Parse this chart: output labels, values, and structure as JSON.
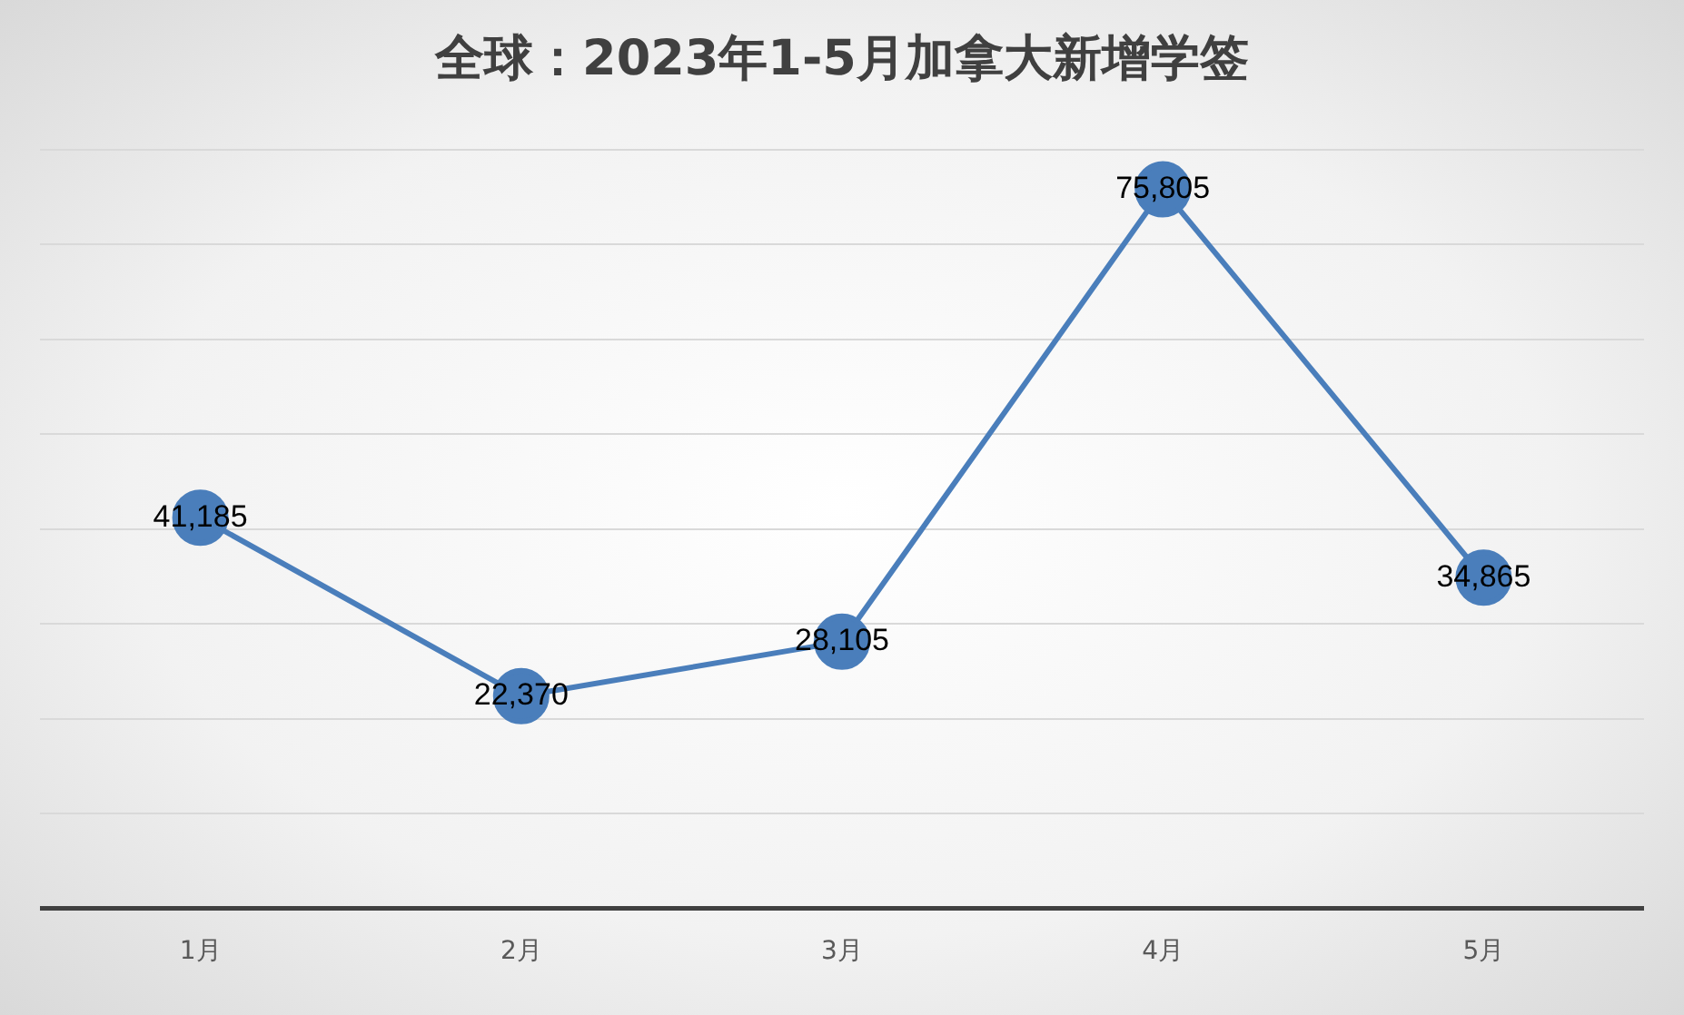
{
  "chart_data": {
    "type": "line",
    "title": "全球：2023年1-5月加拿大新增学签",
    "categories": [
      "1月",
      "2月",
      "3月",
      "4月",
      "5月"
    ],
    "series": [
      {
        "color": "#4a7ebb",
        "values": [
          41185,
          22370,
          28105,
          75805,
          34865
        ],
        "value_labels": [
          "41,185",
          "22,370",
          "28,105",
          "75,805",
          "34,865"
        ]
      }
    ],
    "grid": "y",
    "tick_labels": "x",
    "marker": "circle",
    "line_style": "solid",
    "legend": false
  }
}
